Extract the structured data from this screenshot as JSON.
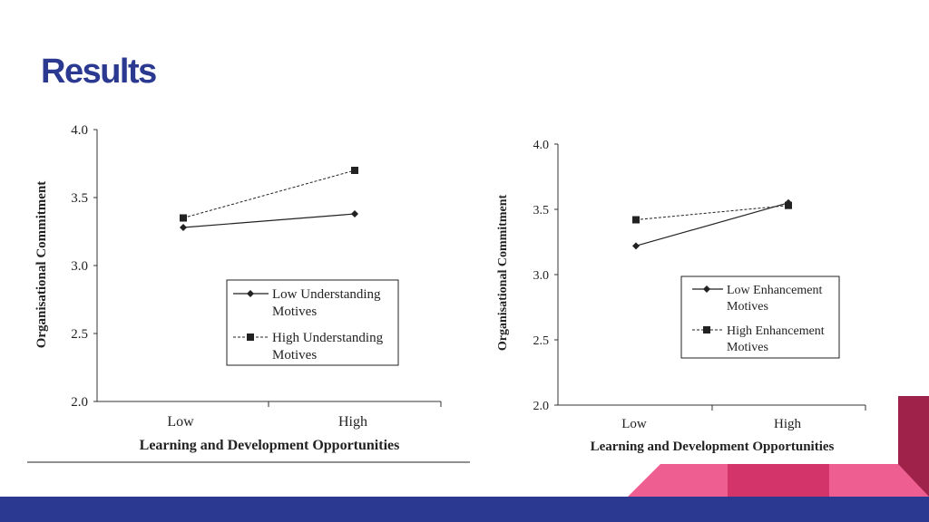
{
  "slide": {
    "title": "Results"
  },
  "colors": {
    "title": "#2b3990",
    "bottom_bar": "#2b3990",
    "pink_light": "#ee5e91",
    "pink_dark": "#d3356a",
    "crimson": "#9e2249"
  },
  "chart_data": [
    {
      "type": "line",
      "ylabel": "Organisational Commitment",
      "xlabel": "Learning and Development Opportunities",
      "categories": [
        "Low",
        "High"
      ],
      "ylim": [
        2.0,
        4.0
      ],
      "yticks": [
        "2.0",
        "2.5",
        "3.0",
        "3.5",
        "4.0"
      ],
      "series": [
        {
          "name": "Low Understanding Motives",
          "values": [
            3.28,
            3.38
          ],
          "marker": "diamond",
          "line": "solid"
        },
        {
          "name": "High Understanding Motives",
          "values": [
            3.35,
            3.7
          ],
          "marker": "square",
          "line": "dashed"
        }
      ],
      "legend": [
        "Low Understanding",
        "Motives",
        "High Understanding",
        "Motives"
      ]
    },
    {
      "type": "line",
      "ylabel": "Organisational Commitment",
      "xlabel": "Learning and Development Opportunities",
      "categories": [
        "Low",
        "High"
      ],
      "ylim": [
        2.0,
        4.0
      ],
      "yticks": [
        "2.0",
        "2.5",
        "3.0",
        "3.5",
        "4.0"
      ],
      "series": [
        {
          "name": "Low Enhancement Motives",
          "values": [
            3.22,
            3.55
          ],
          "marker": "diamond",
          "line": "solid"
        },
        {
          "name": "High Enhancement Motives",
          "values": [
            3.42,
            3.53
          ],
          "marker": "square",
          "line": "dashed"
        }
      ],
      "legend": [
        "Low Enhancement",
        "Motives",
        "High Enhancement",
        "Motives"
      ]
    }
  ]
}
